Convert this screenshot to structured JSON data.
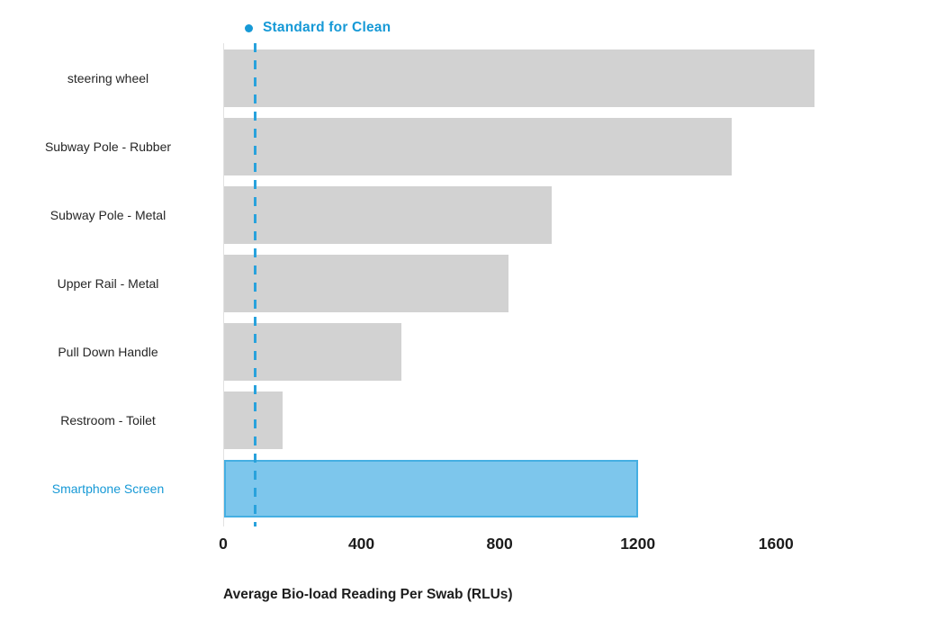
{
  "chart_data": {
    "type": "bar",
    "orientation": "horizontal",
    "title": "",
    "xlabel": "Average Bio-load Reading Per Swab (RLUs)",
    "ylabel": "",
    "categories": [
      "steering wheel",
      "Subway Pole - Rubber",
      "Subway Pole - Metal",
      "Upper Rail - Metal",
      "Pull Down Handle",
      "Restroom - Toilet",
      "Smartphone Screen"
    ],
    "values": [
      1710,
      1470,
      950,
      825,
      515,
      170,
      1200
    ],
    "highlight_category": "Smartphone Screen",
    "reference_line": {
      "label": "Standard for Clean",
      "value": 90
    },
    "x_ticks": [
      0,
      400,
      800,
      1200,
      1600
    ],
    "xlim": [
      0,
      1800
    ],
    "grid": false,
    "legend_position": "top-left",
    "colors": {
      "bar": "#d2d2d2",
      "highlight_fill": "#7dc6ec",
      "highlight_border": "#45afe2",
      "accent_text": "#1699d6",
      "reference_line": "#29a2dc",
      "tick_text": "#1c1c1c"
    }
  }
}
